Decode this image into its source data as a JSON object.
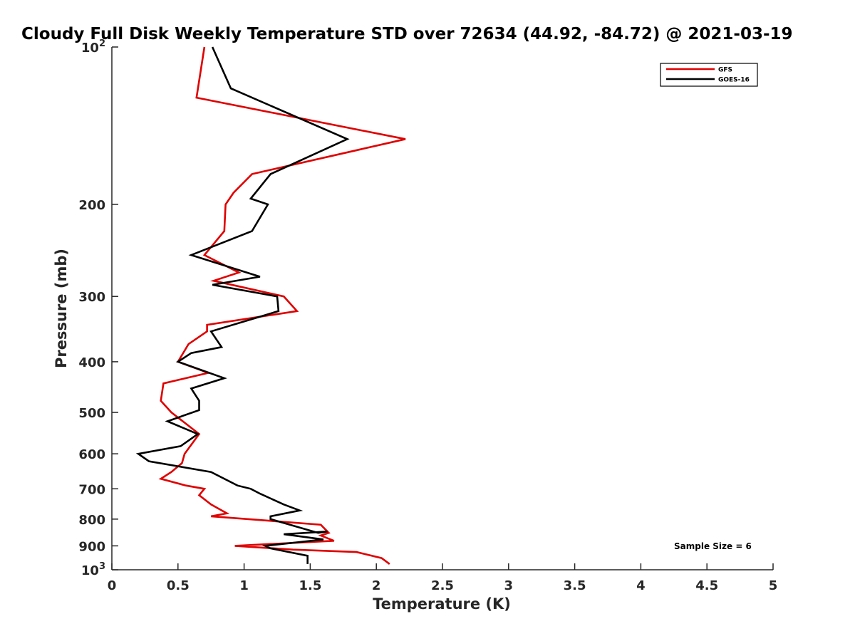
{
  "chart_data": {
    "type": "line",
    "title": "Cloudy Full Disk Weekly Temperature STD over 72634 (44.92, -84.72) @ 2021-03-19",
    "xlabel": "Temperature (K)",
    "ylabel": "Pressure (mb)",
    "xlim": [
      0,
      5
    ],
    "ylim": [
      100,
      1000
    ],
    "y_scale": "log",
    "y_reversed": true,
    "grid": false,
    "legend_position": "top-right",
    "x_ticks": [
      {
        "value": 0,
        "label": "0"
      },
      {
        "value": 0.5,
        "label": "0.5"
      },
      {
        "value": 1,
        "label": "1"
      },
      {
        "value": 1.5,
        "label": "1.5"
      },
      {
        "value": 2,
        "label": "2"
      },
      {
        "value": 2.5,
        "label": "2.5"
      },
      {
        "value": 3,
        "label": "3"
      },
      {
        "value": 3.5,
        "label": "3.5"
      },
      {
        "value": 4,
        "label": "4"
      },
      {
        "value": 4.5,
        "label": "4.5"
      },
      {
        "value": 5,
        "label": "5"
      }
    ],
    "y_ticks": [
      {
        "value": 100,
        "base": "10",
        "exp": "2"
      },
      {
        "value": 200,
        "label": "200"
      },
      {
        "value": 300,
        "label": "300"
      },
      {
        "value": 400,
        "label": "400"
      },
      {
        "value": 500,
        "label": "500"
      },
      {
        "value": 600,
        "label": "600"
      },
      {
        "value": 700,
        "label": "700"
      },
      {
        "value": 800,
        "label": "800"
      },
      {
        "value": 900,
        "label": "900"
      },
      {
        "value": 1000,
        "base": "10",
        "exp": "3"
      }
    ],
    "annotation": "Sample Size = 6",
    "series": [
      {
        "name": "GFS",
        "color": "#e00000",
        "points": [
          [
            0.7,
            100
          ],
          [
            0.64,
            125
          ],
          [
            2.22,
            150
          ],
          [
            1.06,
            175
          ],
          [
            0.92,
            190
          ],
          [
            0.86,
            200
          ],
          [
            0.85,
            225
          ],
          [
            0.7,
            250
          ],
          [
            0.96,
            270
          ],
          [
            0.77,
            280
          ],
          [
            1.3,
            300
          ],
          [
            1.4,
            320
          ],
          [
            0.72,
            340
          ],
          [
            0.72,
            350
          ],
          [
            0.58,
            370
          ],
          [
            0.5,
            400
          ],
          [
            0.73,
            420
          ],
          [
            0.39,
            440
          ],
          [
            0.37,
            475
          ],
          [
            0.45,
            500
          ],
          [
            0.66,
            550
          ],
          [
            0.55,
            600
          ],
          [
            0.53,
            625
          ],
          [
            0.45,
            650
          ],
          [
            0.37,
            670
          ],
          [
            0.56,
            690
          ],
          [
            0.7,
            700
          ],
          [
            0.66,
            720
          ],
          [
            0.75,
            750
          ],
          [
            0.87,
            780
          ],
          [
            0.75,
            790
          ],
          [
            1.58,
            820
          ],
          [
            1.64,
            850
          ],
          [
            1.58,
            860
          ],
          [
            1.68,
            880
          ],
          [
            0.93,
            900
          ],
          [
            1.37,
            915
          ],
          [
            1.85,
            925
          ],
          [
            2.04,
            950
          ],
          [
            2.1,
            975
          ]
        ]
      },
      {
        "name": "GOES-16",
        "color": "#000000",
        "points": [
          [
            0.76,
            100
          ],
          [
            0.9,
            120
          ],
          [
            1.78,
            150
          ],
          [
            1.2,
            175
          ],
          [
            1.05,
            195
          ],
          [
            1.18,
            200
          ],
          [
            1.06,
            225
          ],
          [
            0.6,
            250
          ],
          [
            1.12,
            275
          ],
          [
            0.76,
            285
          ],
          [
            1.25,
            300
          ],
          [
            1.26,
            320
          ],
          [
            0.75,
            350
          ],
          [
            0.83,
            375
          ],
          [
            0.6,
            385
          ],
          [
            0.5,
            400
          ],
          [
            0.85,
            430
          ],
          [
            0.6,
            450
          ],
          [
            0.66,
            475
          ],
          [
            0.66,
            495
          ],
          [
            0.42,
            520
          ],
          [
            0.65,
            550
          ],
          [
            0.52,
            580
          ],
          [
            0.2,
            600
          ],
          [
            0.28,
            620
          ],
          [
            0.75,
            650
          ],
          [
            0.95,
            690
          ],
          [
            1.05,
            700
          ],
          [
            1.12,
            715
          ],
          [
            1.3,
            750
          ],
          [
            1.42,
            770
          ],
          [
            1.2,
            790
          ],
          [
            1.2,
            800
          ],
          [
            1.56,
            850
          ],
          [
            1.63,
            845
          ],
          [
            1.3,
            855
          ],
          [
            1.6,
            875
          ],
          [
            1.16,
            900
          ],
          [
            1.2,
            910
          ],
          [
            1.48,
            940
          ],
          [
            1.48,
            975
          ]
        ]
      }
    ]
  }
}
